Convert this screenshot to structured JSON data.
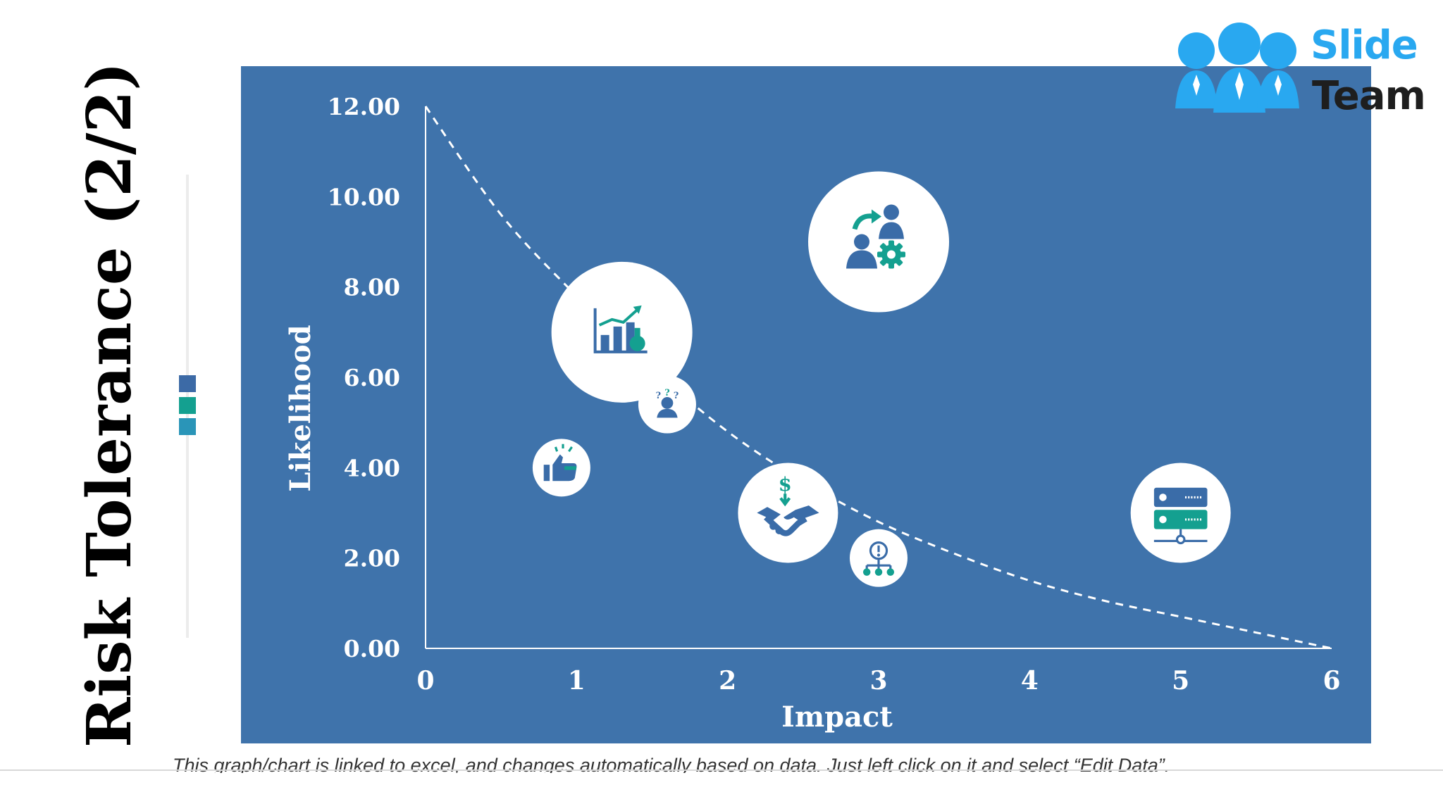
{
  "slide": {
    "title": "Risk Tolerance (2/2)",
    "footnote": "This graph/chart is linked to excel, and changes automatically based on data. Just left click on it and select “Edit Data”.",
    "accent_colors": [
      "#3c6aa6",
      "#14a090",
      "#2a95b8"
    ]
  },
  "logo": {
    "line1": "Slide",
    "line2": "Team",
    "color_primary": "#29a8f0",
    "color_secondary": "#1e1e1e"
  },
  "chart_data": {
    "type": "scatter",
    "title": "",
    "xlabel": "Impact",
    "ylabel": "Likelihood",
    "xlim": [
      0,
      6
    ],
    "ylim": [
      0,
      12
    ],
    "x_ticks": [
      "0",
      "1",
      "2",
      "3",
      "4",
      "5",
      "6"
    ],
    "y_ticks": [
      "0.00",
      "2.00",
      "4.00",
      "6.00",
      "8.00",
      "10.00",
      "12.00"
    ],
    "background": "#3f73ab",
    "icon_color": "#3a6ca8",
    "icon_accent": "#14a090",
    "points": [
      {
        "icon": "team-transfer-gear-icon",
        "x": 3.0,
        "y": 9.0,
        "size": "large"
      },
      {
        "icon": "growth-chart-icon",
        "x": 1.3,
        "y": 7.0,
        "size": "large"
      },
      {
        "icon": "confused-person-icon",
        "x": 1.6,
        "y": 5.4,
        "size": "small"
      },
      {
        "icon": "thumbs-up-icon",
        "x": 0.9,
        "y": 4.0,
        "size": "small"
      },
      {
        "icon": "handshake-money-icon",
        "x": 2.4,
        "y": 3.0,
        "size": "medium"
      },
      {
        "icon": "network-alert-icon",
        "x": 3.0,
        "y": 2.0,
        "size": "small"
      },
      {
        "icon": "server-network-icon",
        "x": 5.0,
        "y": 3.0,
        "size": "medium"
      }
    ],
    "trend_curve": {
      "style": "dashed",
      "points": [
        [
          0,
          12.0
        ],
        [
          0.5,
          9.6
        ],
        [
          1,
          7.8
        ],
        [
          1.5,
          6.2
        ],
        [
          2,
          4.8
        ],
        [
          2.5,
          3.7
        ],
        [
          3,
          2.8
        ],
        [
          3.5,
          2.1
        ],
        [
          4,
          1.5
        ],
        [
          4.5,
          1.05
        ],
        [
          5,
          0.7
        ],
        [
          5.5,
          0.35
        ],
        [
          6,
          0.0
        ]
      ]
    }
  }
}
